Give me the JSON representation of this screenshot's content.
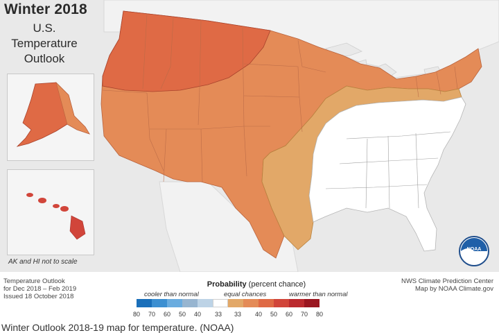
{
  "title": "Winter 2018",
  "subtitle_lines": [
    "U.S.",
    "Temperature",
    "Outlook"
  ],
  "scale_note": "AK and HI not to scale",
  "left_notes": [
    "Temperature Outlook",
    "for Dec 2018 – Feb 2019",
    "Issued 18 October 2018"
  ],
  "right_notes": [
    "NWS Climate Prediction Center",
    "Map by NOAA Climate.gov"
  ],
  "logo_text": "NOAA",
  "legend": {
    "title_bold": "Probability",
    "title_rest": "(percent chance)",
    "cooler_label": "cooler than normal",
    "equal_label": "equal chances",
    "warmer_label": "warmer than normal",
    "cool_colors": [
      "#1a6fba",
      "#3c8fd1",
      "#6aacdf",
      "#97b5d0",
      "#bdd3e6"
    ],
    "equal_color": "#ffffff",
    "warm_colors": [
      "#e2a868",
      "#e48b57",
      "#df6a45",
      "#d1453a",
      "#bb2a2e",
      "#9a1620"
    ],
    "ticks": [
      "80",
      "70",
      "60",
      "50",
      "40",
      "33",
      "33",
      "40",
      "50",
      "60",
      "70",
      "80"
    ]
  },
  "map_regions": {
    "band_33_40": {
      "color": "#e2a868"
    },
    "band_40_50": {
      "color": "#e48b57"
    },
    "band_50_60": {
      "color": "#df6a45"
    },
    "equal_chances": {
      "color": "#ffffff"
    }
  },
  "caption": "Winter Outlook 2018-19 map for temperature. (NOAA)"
}
